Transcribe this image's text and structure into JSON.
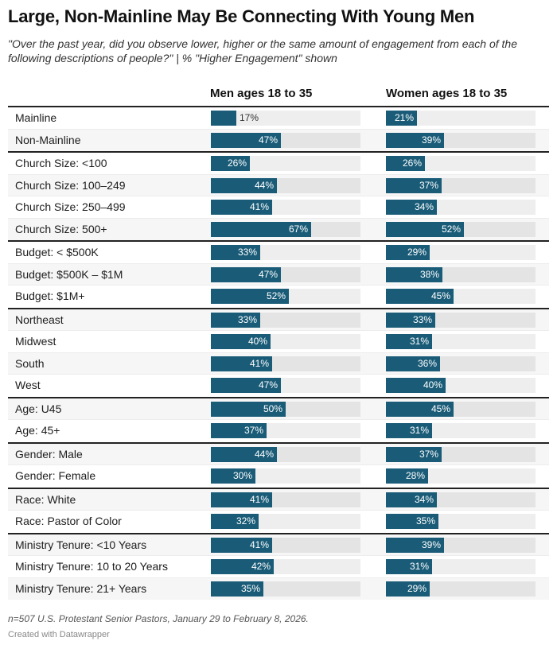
{
  "header": {
    "title": "Large, Non-Mainline May Be Connecting With Young Men",
    "subtitle": "\"Over the past year, did you observe lower, higher or the same amount of engagement from each of the following descriptions of people?\" | % \"Higher Engagement\" shown"
  },
  "footer": {
    "notes": "n=507 U.S. Protestant Senior Pastors, January 29 to February 8, 2026.",
    "credit": "Created with Datawrapper"
  },
  "colors": {
    "bar": "#1a5c78",
    "track": "#eeeeee",
    "track_alt": "#e4e4e4",
    "row_alt": "#f6f6f6"
  },
  "chart_data": {
    "type": "bar",
    "title": "Large, Non-Mainline May Be Connecting With Young Men",
    "subtitle": "\"Over the past year, did you observe lower, higher or the same amount of engagement from each of the following descriptions of people?\" | % \"Higher Engagement\" shown",
    "orientation": "horizontal",
    "unit": "%",
    "xlim": [
      0,
      100
    ],
    "columns": [
      "Men ages 18 to 35",
      "Women ages 18 to 35"
    ],
    "groups": [
      {
        "rows": [
          {
            "label": "Mainline",
            "men": 17,
            "women": 21
          },
          {
            "label": "Non-Mainline",
            "men": 47,
            "women": 39
          }
        ]
      },
      {
        "rows": [
          {
            "label": "Church Size: <100",
            "men": 26,
            "women": 26
          },
          {
            "label": "Church Size: 100–249",
            "men": 44,
            "women": 37
          },
          {
            "label": "Church Size: 250–499",
            "men": 41,
            "women": 34
          },
          {
            "label": "Church Size: 500+",
            "men": 67,
            "women": 52
          }
        ]
      },
      {
        "rows": [
          {
            "label": "Budget: < $500K",
            "men": 33,
            "women": 29
          },
          {
            "label": "Budget: $500K – $1M",
            "men": 47,
            "women": 38
          },
          {
            "label": "Budget: $1M+",
            "men": 52,
            "women": 45
          }
        ]
      },
      {
        "rows": [
          {
            "label": "Northeast",
            "men": 33,
            "women": 33
          },
          {
            "label": "Midwest",
            "men": 40,
            "women": 31
          },
          {
            "label": "South",
            "men": 41,
            "women": 36
          },
          {
            "label": "West",
            "men": 47,
            "women": 40
          }
        ]
      },
      {
        "rows": [
          {
            "label": "Age: U45",
            "men": 50,
            "women": 45
          },
          {
            "label": "Age: 45+",
            "men": 37,
            "women": 31
          }
        ]
      },
      {
        "rows": [
          {
            "label": "Gender: Male",
            "men": 44,
            "women": 37
          },
          {
            "label": "Gender: Female",
            "men": 30,
            "women": 28
          }
        ]
      },
      {
        "rows": [
          {
            "label": "Race: White",
            "men": 41,
            "women": 34
          },
          {
            "label": "Race: Pastor of Color",
            "men": 32,
            "women": 35
          }
        ]
      },
      {
        "rows": [
          {
            "label": "Ministry Tenure: <10 Years",
            "men": 41,
            "women": 39
          },
          {
            "label": "Ministry Tenure: 10 to 20 Years",
            "men": 42,
            "women": 31
          },
          {
            "label": "Ministry Tenure: 21+ Years",
            "men": 35,
            "women": 29
          }
        ]
      }
    ]
  }
}
